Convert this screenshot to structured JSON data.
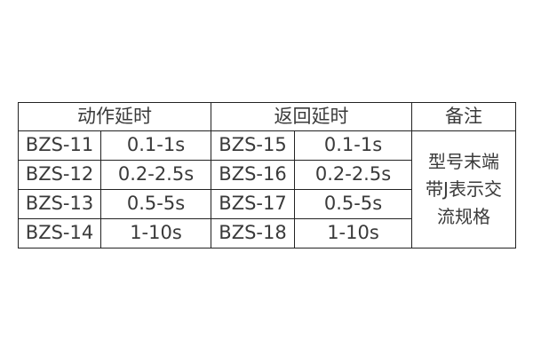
{
  "headers": {
    "action_delay": "动作延时",
    "return_delay": "返回延时",
    "remarks": "备注"
  },
  "rows": [
    {
      "action_model": "BZS-11",
      "action_range": "0.1-1s",
      "return_model": "BZS-15",
      "return_range": "0.1-1s"
    },
    {
      "action_model": "BZS-12",
      "action_range": "0.2-2.5s",
      "return_model": "BZS-16",
      "return_range": "0.2-2.5s"
    },
    {
      "action_model": "BZS-13",
      "action_range": "0.5-5s",
      "return_model": "BZS-17",
      "return_range": "0.5-5s"
    },
    {
      "action_model": "BZS-14",
      "action_range": "1-10s",
      "return_model": "BZS-18",
      "return_range": "1-10s"
    }
  ],
  "remarks_lines": [
    "型号末端",
    "带J表示交",
    "流规格"
  ]
}
